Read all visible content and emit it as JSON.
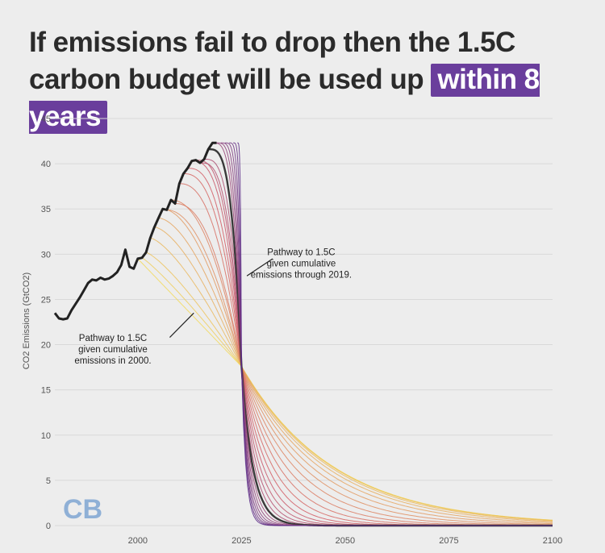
{
  "title": {
    "line1": "If emissions fail to drop then the 1.5C",
    "line2_prefix": "carbon budget will be used up",
    "line2_highlight": "within 8 years"
  },
  "logo": "CB",
  "colors": {
    "highlight": "#6a3e9c",
    "historical": "#222222",
    "pathway_start": "#f2d95c",
    "pathway_end": "#5b2a86",
    "highlight_pathway": "#3a3a3a"
  },
  "chart_data": {
    "type": "line",
    "ylabel": "CO2 Emissions (GtCO2)",
    "xlim": [
      1980,
      2100
    ],
    "ylim": [
      0,
      45
    ],
    "xticks": [
      2000,
      2025,
      2050,
      2075,
      2100
    ],
    "yticks": [
      0,
      5,
      10,
      15,
      20,
      25,
      30,
      35,
      40,
      45
    ],
    "grid": "horizontal",
    "historical": {
      "x": [
        1980,
        1981,
        1982,
        1983,
        1984,
        1985,
        1986,
        1987,
        1988,
        1989,
        1990,
        1991,
        1992,
        1993,
        1994,
        1995,
        1996,
        1997,
        1998,
        1999,
        2000,
        2001,
        2002,
        2003,
        2004,
        2005,
        2006,
        2007,
        2008,
        2009,
        2010,
        2011,
        2012,
        2013,
        2014,
        2015,
        2016,
        2017,
        2018,
        2019
      ],
      "y": [
        23.5,
        22.9,
        22.8,
        22.9,
        23.8,
        24.5,
        25.2,
        26.0,
        26.8,
        27.2,
        27.1,
        27.4,
        27.2,
        27.3,
        27.6,
        28.0,
        28.8,
        30.5,
        28.6,
        28.4,
        29.5,
        29.6,
        30.2,
        31.8,
        33.0,
        34.0,
        35.0,
        34.9,
        36.0,
        35.6,
        37.8,
        38.9,
        39.5,
        40.3,
        40.4,
        40.1,
        40.5,
        41.6,
        42.3,
        42.3
      ]
    },
    "pathways": {
      "count": 20,
      "start_years": [
        2000,
        2001,
        2002,
        2003,
        2004,
        2005,
        2006,
        2007,
        2008,
        2009,
        2010,
        2011,
        2012,
        2013,
        2014,
        2015,
        2016,
        2017,
        2018,
        2019
      ],
      "end_year": 2100,
      "crossing_point": {
        "x": 2025,
        "y": 17.6
      },
      "highlighted_start_year": 2017,
      "description": "Mitigation pathways to 1.5C beginning in each year 2000–2019; later starts require steeper declines"
    },
    "annotations": [
      {
        "lines": [
          "Pathway to 1.5C",
          "given cumulative",
          "emissions through 2019."
        ],
        "x": 2024.5,
        "y": 28.5
      },
      {
        "lines": [
          "Pathway to 1.5C",
          "given cumulative",
          "emissions in 2000."
        ],
        "x": 2003.5,
        "y": 23.5
      }
    ]
  }
}
